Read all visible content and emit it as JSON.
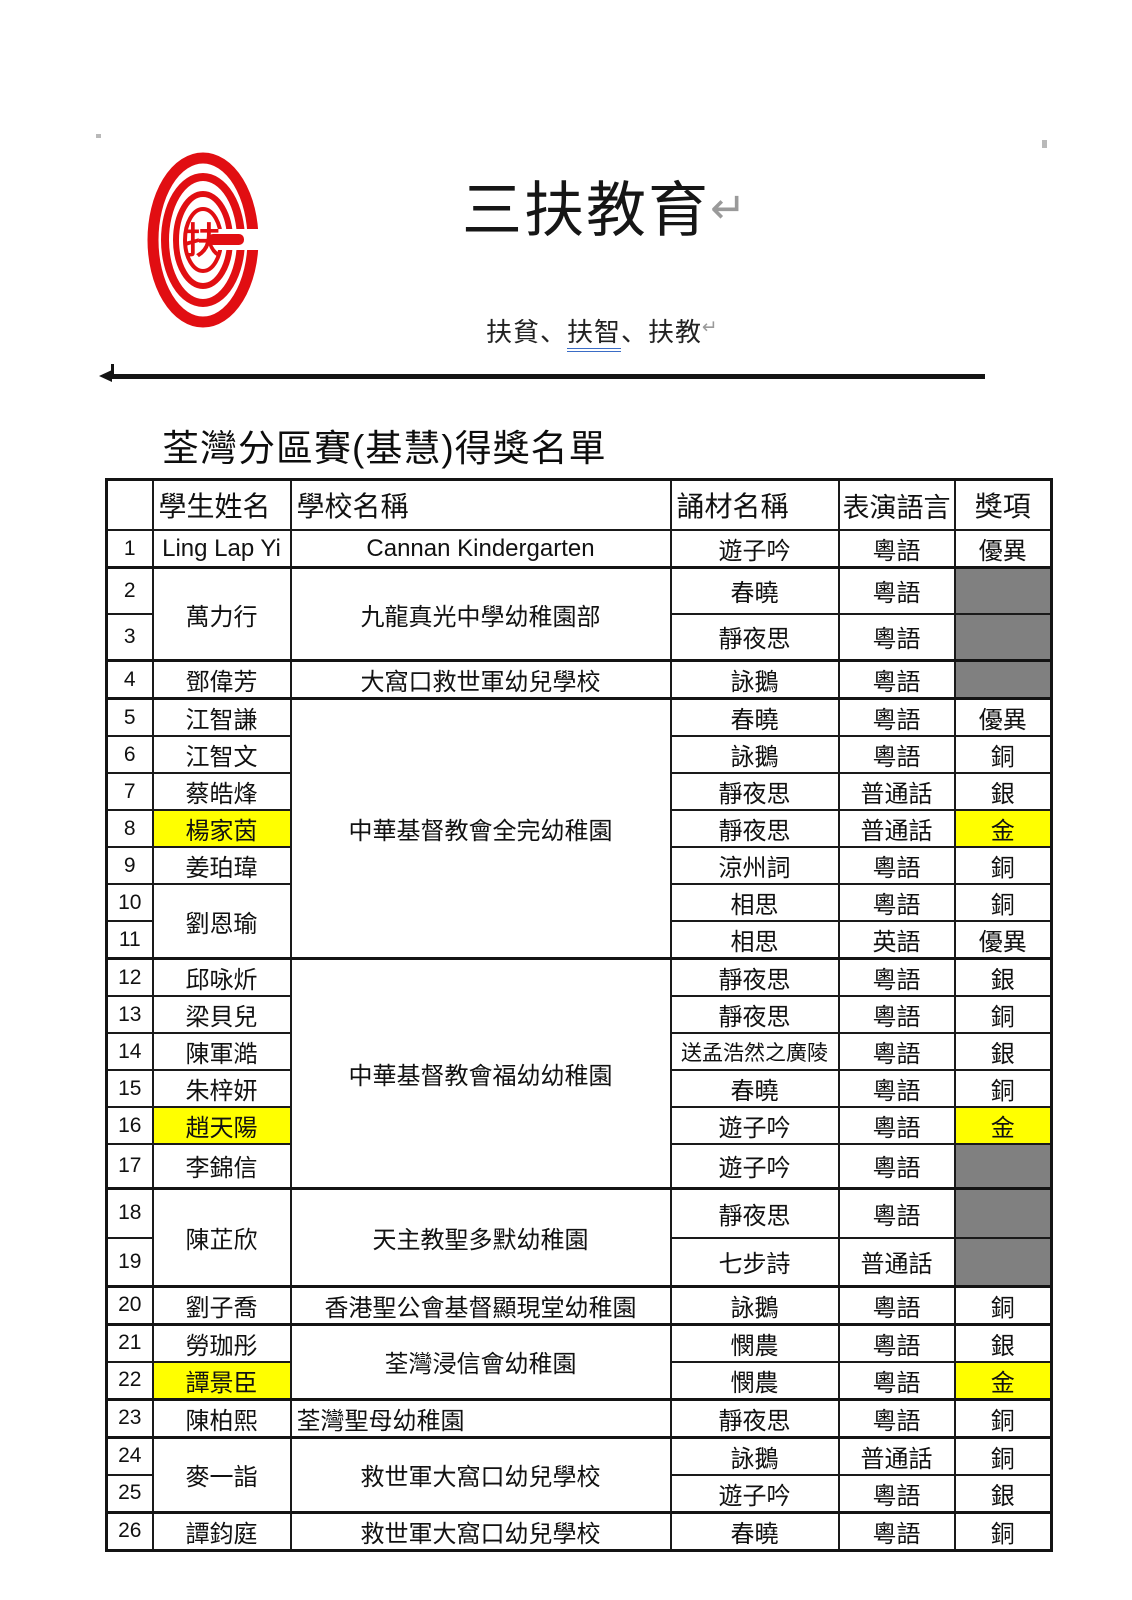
{
  "page": {
    "title": "三扶教育",
    "return_mark": "↵",
    "subtitle_parts": [
      "扶貧、",
      "扶智",
      "、扶教"
    ],
    "section_title": "荃灣分區賽(基慧)得獎名單"
  },
  "logo": {
    "char": "扶"
  },
  "colors": {
    "logo_red": "#e10e12",
    "highlight_yellow": "#ffff00",
    "empty_award_gray": "#808080",
    "underline_blue": "#3a6cc6"
  },
  "table": {
    "headers": [
      "",
      "學生姓名",
      "學校名稱",
      "誦材名稱",
      "表演語言",
      "獎項"
    ],
    "rows": [
      {
        "no": "1",
        "name": "Ling Lap Yi",
        "school": "Cannan Kindergarten",
        "material": "遊子吟",
        "language": "粵語",
        "award": "優異"
      },
      {
        "no": "2",
        "name": "萬力行",
        "name_span": 2,
        "school": "九龍真光中學幼稚園部",
        "school_span": 2,
        "material": "春曉",
        "language": "粵語",
        "award": "",
        "award_gray": true,
        "group": true
      },
      {
        "no": "3",
        "material": "靜夜思",
        "language": "粵語",
        "award": "",
        "award_gray": true
      },
      {
        "no": "4",
        "name": "鄧偉芳",
        "school": "大窩口救世軍幼兒學校",
        "material": "詠鵝",
        "language": "粵語",
        "award": "",
        "award_gray": true,
        "group": true
      },
      {
        "no": "5",
        "name": "江智謙",
        "school": "中華基督教會全完幼稚園",
        "school_span": 7,
        "material": "春曉",
        "language": "粵語",
        "award": "優異",
        "group": true
      },
      {
        "no": "6",
        "name": "江智文",
        "material": "詠鵝",
        "language": "粵語",
        "award": "銅"
      },
      {
        "no": "7",
        "name": "蔡皓烽",
        "material": "靜夜思",
        "language": "普通話",
        "award": "銀"
      },
      {
        "no": "8",
        "name": "楊家茵",
        "name_hl": true,
        "material": "靜夜思",
        "language": "普通話",
        "award": "金",
        "award_hl": true
      },
      {
        "no": "9",
        "name": "姜珀瑋",
        "material": "涼州詞",
        "language": "粵語",
        "award": "銅"
      },
      {
        "no": "10",
        "name": "劉恩瑜",
        "name_span": 2,
        "material": "相思",
        "language": "粵語",
        "award": "銅"
      },
      {
        "no": "11",
        "material": "相思",
        "language": "英語",
        "award": "優異"
      },
      {
        "no": "12",
        "name": "邱咏炘",
        "school": "中華基督教會福幼幼稚園",
        "school_span": 6,
        "material": "靜夜思",
        "language": "粵語",
        "award": "銀",
        "group": true
      },
      {
        "no": "13",
        "name": "梁貝兒",
        "material": "靜夜思",
        "language": "粵語",
        "award": "銅"
      },
      {
        "no": "14",
        "name": "陳軍澔",
        "material": "送孟浩然之廣陵",
        "material_small": true,
        "language": "粵語",
        "award": "銀"
      },
      {
        "no": "15",
        "name": "朱梓妍",
        "material": "春曉",
        "language": "粵語",
        "award": "銅"
      },
      {
        "no": "16",
        "name": "趙天陽",
        "name_hl": true,
        "material": "遊子吟",
        "language": "粵語",
        "award": "金",
        "award_hl": true
      },
      {
        "no": "17",
        "name": "李錦信",
        "material": "遊子吟",
        "language": "粵語",
        "award": "",
        "award_gray": true
      },
      {
        "no": "18",
        "name": "陳芷欣",
        "name_span": 2,
        "school": "天主教聖多默幼稚園",
        "school_span": 2,
        "material": "靜夜思",
        "language": "粵語",
        "award": "",
        "award_gray": true,
        "group": true
      },
      {
        "no": "19",
        "material": "七步詩",
        "language": "普通話",
        "award": "",
        "award_gray": true
      },
      {
        "no": "20",
        "name": "劉子喬",
        "school": "香港聖公會基督顯現堂幼稚園",
        "material": "詠鵝",
        "language": "粵語",
        "award": "銅",
        "group": true
      },
      {
        "no": "21",
        "name": "勞珈彤",
        "school": "荃灣浸信會幼稚園",
        "school_span": 2,
        "material": "憫農",
        "language": "粵語",
        "award": "銀",
        "group": true
      },
      {
        "no": "22",
        "name": "譚景臣",
        "name_hl": true,
        "material": "憫農",
        "language": "粵語",
        "award": "金",
        "award_hl": true
      },
      {
        "no": "23",
        "name": "陳柏熙",
        "school": "荃灣聖母幼稚園",
        "school_left": true,
        "material": "靜夜思",
        "language": "粵語",
        "award": "銅",
        "group": true
      },
      {
        "no": "24",
        "name": "麥一詣",
        "name_span": 2,
        "school": "救世軍大窩口幼兒學校",
        "school_span": 2,
        "material": "詠鵝",
        "language": "普通話",
        "award": "銅",
        "group": true
      },
      {
        "no": "25",
        "material": "遊子吟",
        "language": "粵語",
        "award": "銀"
      },
      {
        "no": "26",
        "name": "譚鈞庭",
        "school": "救世軍大窩口幼兒學校",
        "material": "春曉",
        "language": "粵語",
        "award": "銅",
        "group": true
      }
    ]
  }
}
